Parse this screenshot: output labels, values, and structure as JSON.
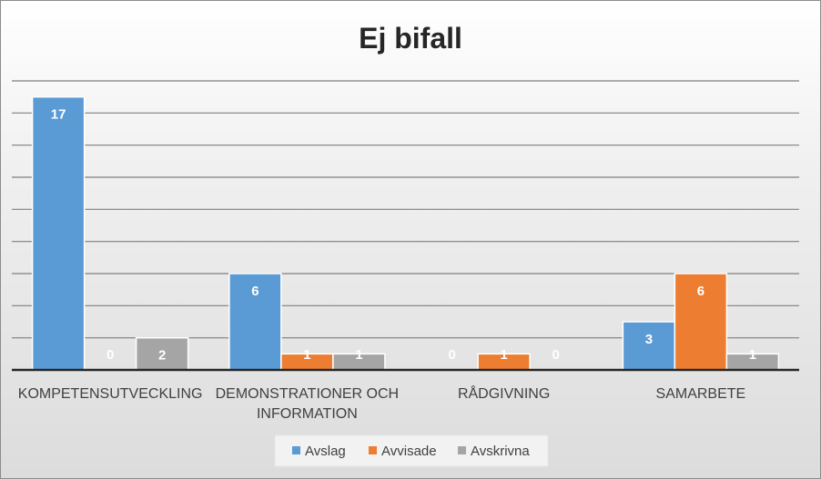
{
  "chart_data": {
    "type": "bar",
    "title": "Ej bifall",
    "categories": [
      "KOMPETENSUTVECKLING",
      "DEMONSTRATIONER OCH INFORMATION",
      "RÅDGIVNING",
      "SAMARBETE"
    ],
    "category_lines": [
      [
        "KOMPETENSUTVECKLING"
      ],
      [
        "DEMONSTRATIONER OCH",
        "INFORMATION"
      ],
      [
        "RÅDGIVNING"
      ],
      [
        "SAMARBETE"
      ]
    ],
    "series": [
      {
        "name": "Avslag",
        "values": [
          17,
          6,
          0,
          3
        ],
        "color": "#5b9bd5"
      },
      {
        "name": "Avvisade",
        "values": [
          0,
          1,
          1,
          6
        ],
        "color": "#ed7d31"
      },
      {
        "name": "Avskrivna",
        "values": [
          2,
          1,
          0,
          1
        ],
        "color": "#a5a5a5"
      }
    ],
    "ylim": [
      0,
      18
    ],
    "y_gridline_step": 2,
    "y_tick_labels_shown": false,
    "grid": true,
    "legend_position": "bottom",
    "data_labels": true,
    "xlabel": "",
    "ylabel": ""
  }
}
